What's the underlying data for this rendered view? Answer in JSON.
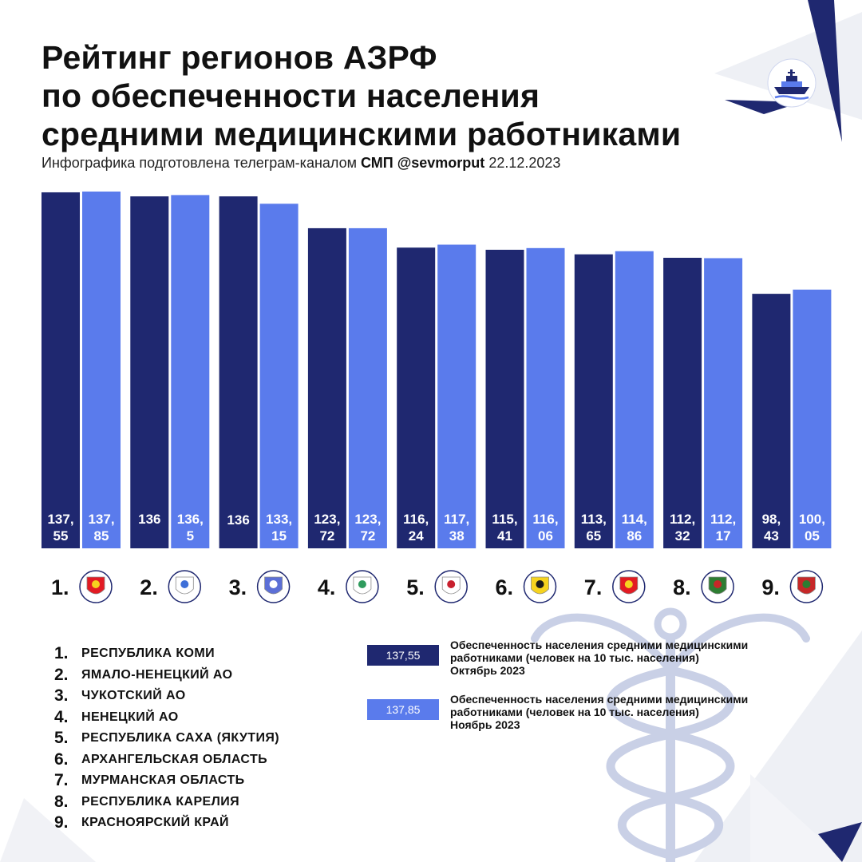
{
  "header": {
    "title_lines": [
      "Рейтинг регионов АЗРФ",
      "по обеспеченности населения",
      "средними медицинскими работниками"
    ],
    "subtitle_prefix": "Инфографика подготовлена телеграм-каналом",
    "subtitle_brand": "СМП @sevmorput",
    "subtitle_date": "22.12.2023"
  },
  "colors": {
    "october": "#1f2870",
    "november": "#5a7bec",
    "decor_navy": "#1f2870",
    "decor_grey": "#eef0f5"
  },
  "icons": {
    "logo": "icebreaker-ship-logo",
    "background": "caduceus-icon",
    "region_emblems": [
      "komi-emblem",
      "yamal-emblem",
      "chukotka-emblem",
      "nenets-emblem",
      "yakutia-emblem",
      "arkhangelsk-emblem",
      "murmansk-emblem",
      "karelia-emblem",
      "krasnoyarsk-emblem"
    ]
  },
  "chart_data": {
    "type": "bar",
    "categories": [
      "Республика Коми",
      "Ямало-Ненецкий АО",
      "Чукотский АО",
      "Ненецкий АО",
      "Республика Саха (Якутия)",
      "Архангельская область",
      "Мурманская область",
      "Республика Карелия",
      "Красноярский край"
    ],
    "ranks": [
      "1.",
      "2.",
      "3.",
      "4.",
      "5.",
      "6.",
      "7.",
      "8.",
      "9."
    ],
    "series": [
      {
        "name": "Обеспеченность населения средними медицинскими работниками (человек на 10 тыс. населения) Октябрь 2023",
        "values": [
          137.55,
          136,
          136,
          123.72,
          116.24,
          115.41,
          113.65,
          112.32,
          98.43
        ],
        "labels": [
          [
            "137,",
            "55"
          ],
          [
            "136"
          ],
          [
            "136"
          ],
          [
            "123,",
            "72"
          ],
          [
            "116,",
            "24"
          ],
          [
            "115,",
            "41"
          ],
          [
            "113,",
            "65"
          ],
          [
            "112,",
            "32"
          ],
          [
            "98,",
            "43"
          ]
        ]
      },
      {
        "name": "Обеспеченность населения средними медицинскими работниками (человек на 10 тыс. населения) Ноябрь 2023",
        "values": [
          137.85,
          136.5,
          133.15,
          123.72,
          117.38,
          116.06,
          114.86,
          112.17,
          100.05
        ],
        "labels": [
          [
            "137,",
            "85"
          ],
          [
            "136,",
            "5"
          ],
          [
            "133,",
            "15"
          ],
          [
            "123,",
            "72"
          ],
          [
            "117,",
            "38"
          ],
          [
            "116,",
            "06"
          ],
          [
            "114,",
            "86"
          ],
          [
            "112,",
            "17"
          ],
          [
            "100,",
            "05"
          ]
        ]
      }
    ],
    "legend_placement": "bottom-right",
    "grid": false,
    "xlabel": "",
    "ylabel": ""
  },
  "legend": {
    "regions": [
      {
        "num": "1.",
        "name": "РЕСПУБЛИКА КОМИ"
      },
      {
        "num": "2.",
        "name": "ЯМАЛО-НЕНЕЦКИЙ АО"
      },
      {
        "num": "3.",
        "name": "ЧУКОТСКИЙ АО"
      },
      {
        "num": "4.",
        "name": "НЕНЕЦКИЙ АО"
      },
      {
        "num": "5.",
        "name": "РЕСПУБЛИКА САХА (ЯКУТИЯ)"
      },
      {
        "num": "6.",
        "name": "АРХАНГЕЛЬСКАЯ ОБЛАСТЬ"
      },
      {
        "num": "7.",
        "name": "МУРМАНСКАЯ ОБЛАСТЬ"
      },
      {
        "num": "8.",
        "name": "РЕСПУБЛИКА КАРЕЛИЯ"
      },
      {
        "num": "9.",
        "name": "КРАСНОЯРСКИЙ КРАЙ"
      }
    ],
    "october_key": {
      "sample": "137,55",
      "lines": [
        "Обеспеченность населения средними медицинскими",
        "работниками (человек на 10 тыс. населения)",
        "Октябрь 2023"
      ]
    },
    "november_key": {
      "sample": "137,85",
      "lines": [
        "Обеспеченность населения средними медицинскими",
        "работниками (человек на 10 тыс. населения)",
        "Ноябрь 2023"
      ]
    }
  }
}
